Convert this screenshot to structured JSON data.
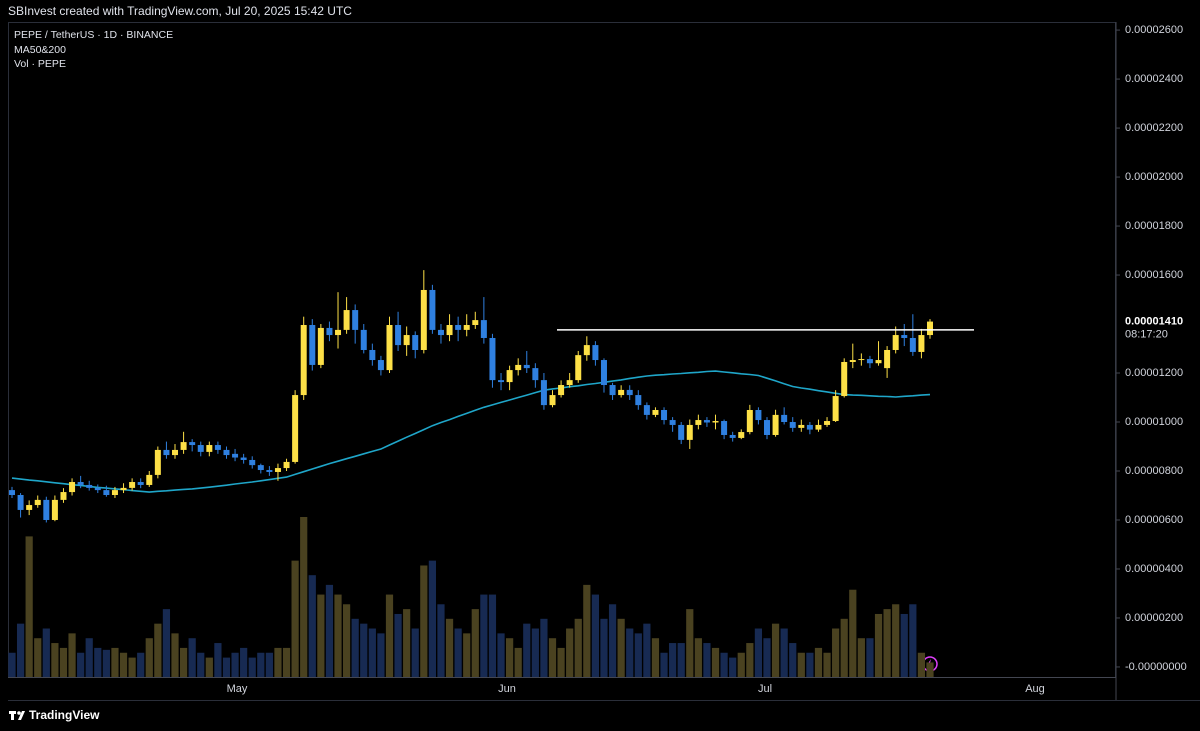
{
  "header": {
    "credit": "SBInvest created with TradingView.com, Jul 20, 2025 15:42 UTC"
  },
  "footer": {
    "brand": "TradingView"
  },
  "chart_data": {
    "type": "candlestick",
    "legend": [
      "PEPE / TetherUS · 1D · BINANCE",
      "MA50&200",
      "Vol · PEPE"
    ],
    "x_labels": [
      "May",
      "Jun",
      "Jul",
      "Aug"
    ],
    "up_color": "#fde047",
    "down_color": "#2f80e0",
    "vol_up_color": "#4a4220",
    "vol_down_color": "#172a52",
    "ma_color": "#1fa6c9",
    "hline_color": "#ffffff",
    "grid": false,
    "ylim": [
      -4.1e-07,
      2.633e-05
    ],
    "yticks": [
      {
        "value": 2.6e-05,
        "label": "0.00002600"
      },
      {
        "value": 2.4e-05,
        "label": "0.00002400"
      },
      {
        "value": 2.2e-05,
        "label": "0.00002200"
      },
      {
        "value": 2e-05,
        "label": "0.00002000"
      },
      {
        "value": 1.8e-05,
        "label": "0.00001800"
      },
      {
        "value": 1.6e-05,
        "label": "0.00001600"
      },
      {
        "value": 1.2e-05,
        "label": "0.00001200"
      },
      {
        "value": 1e-05,
        "label": "0.00001000"
      },
      {
        "value": 8e-06,
        "label": "0.00000800"
      },
      {
        "value": 6e-06,
        "label": "0.00000600"
      },
      {
        "value": 4e-06,
        "label": "0.00000400"
      },
      {
        "value": 2e-06,
        "label": "0.00000200"
      },
      {
        "value": 0,
        "label": "-0.00000000"
      }
    ],
    "last_price": {
      "value": 1.41e-05,
      "label": "0.00001410"
    },
    "countdown": "08:17:20",
    "hline": 1.376e-05,
    "open": [
      7.22e-06,
      7.02e-06,
      6.41e-06,
      6.61e-06,
      6.82e-06,
      6e-06,
      6.82e-06,
      7.14e-06,
      7.55e-06,
      7.43e-06,
      7.31e-06,
      7.22e-06,
      7.02e-06,
      7.22e-06,
      7.31e-06,
      7.55e-06,
      7.43e-06,
      7.84e-06,
      8.86e-06,
      8.65e-06,
      8.86e-06,
      9.18e-06,
      9.06e-06,
      8.78e-06,
      9.06e-06,
      8.86e-06,
      8.7e-06,
      8.55e-06,
      8.45e-06,
      8.24e-06,
      8.04e-06,
      7.96e-06,
      8.12e-06,
      8.37e-06,
      1.11e-05,
      1.396e-05,
      1.233e-05,
      1.384e-05,
      1.355e-05,
      1.376e-05,
      1.457e-05,
      1.376e-05,
      1.294e-05,
      1.253e-05,
      1.212e-05,
      1.396e-05,
      1.314e-05,
      1.355e-05,
      1.294e-05,
      1.539e-05,
      1.376e-05,
      1.355e-05,
      1.396e-05,
      1.376e-05,
      1.396e-05,
      1.416e-05,
      1.343e-05,
      1.171e-05,
      1.163e-05,
      1.212e-05,
      1.233e-05,
      1.22e-05,
      1.171e-05,
      1.069e-05,
      1.11e-05,
      1.151e-05,
      1.171e-05,
      1.273e-05,
      1.314e-05,
      1.253e-05,
      1.151e-05,
      1.11e-05,
      1.131e-05,
      1.11e-05,
      1.069e-05,
      1.029e-05,
      1.049e-05,
      1.008e-05,
      9.88e-06,
      9.27e-06,
      9.88e-06,
      1.008e-05,
      9.98e-06,
      1.004e-05,
      9.47e-06,
      9.35e-06,
      9.59e-06,
      1.049e-05,
      1.008e-05,
      9.47e-06,
      1.029e-05,
      1e-05,
      9.76e-06,
      9.88e-06,
      9.69e-06,
      9.88e-06,
      1.004e-05,
      1.106e-05,
      1.245e-05,
      1.253e-05,
      1.257e-05,
      1.24e-05,
      1.22e-05,
      1.294e-05,
      1.355e-05,
      1.343e-05,
      1.286e-05,
      1.355e-05
    ],
    "high": [
      7.35e-06,
      7.1e-06,
      6.8e-06,
      7e-06,
      6.95e-06,
      7e-06,
      7.3e-06,
      7.7e-06,
      7.8e-06,
      7.6e-06,
      7.45e-06,
      7.4e-06,
      7.35e-06,
      7.5e-06,
      7.7e-06,
      7.7e-06,
      8e-06,
      9e-06,
      9.2e-06,
      9.1e-06,
      9.6e-06,
      9.3e-06,
      9.2e-06,
      9.2e-06,
      9.2e-06,
      9e-06,
      8.9e-06,
      8.7e-06,
      8.6e-06,
      8.3e-06,
      8.2e-06,
      8.3e-06,
      8.5e-06,
      1.13e-05,
      1.43e-05,
      1.42e-05,
      1.4e-05,
      1.41e-05,
      1.53e-05,
      1.51e-05,
      1.48e-05,
      1.4e-05,
      1.32e-05,
      1.27e-05,
      1.43e-05,
      1.45e-05,
      1.39e-05,
      1.37e-05,
      1.62e-05,
      1.56e-05,
      1.4e-05,
      1.44e-05,
      1.43e-05,
      1.44e-05,
      1.45e-05,
      1.51e-05,
      1.36e-05,
      1.2e-05,
      1.23e-05,
      1.26e-05,
      1.29e-05,
      1.24e-05,
      1.2e-05,
      1.13e-05,
      1.17e-05,
      1.2e-05,
      1.29e-05,
      1.35e-05,
      1.33e-05,
      1.26e-05,
      1.16e-05,
      1.15e-05,
      1.15e-05,
      1.13e-05,
      1.08e-05,
      1.06e-05,
      1.06e-05,
      1.02e-05,
      1e-05,
      1.01e-05,
      1.03e-05,
      1.02e-05,
      1.03e-05,
      1.01e-05,
      9.6e-06,
      9.7e-06,
      1.07e-05,
      1.06e-05,
      1.02e-05,
      1.05e-05,
      1.06e-05,
      1.02e-05,
      1.01e-05,
      1e-05,
      1.01e-05,
      1.02e-05,
      1.13e-05,
      1.26e-05,
      1.32e-05,
      1.28e-05,
      1.27e-05,
      1.33e-05,
      1.31e-05,
      1.39e-05,
      1.4e-05,
      1.44e-05,
      1.38e-05,
      1.42e-05
    ],
    "low": [
      6.9e-06,
      6.1e-06,
      6.2e-06,
      6.5e-06,
      5.9e-06,
      5.95e-06,
      6.7e-06,
      7e-06,
      7.3e-06,
      7.2e-06,
      7.1e-06,
      6.95e-06,
      6.9e-06,
      7.1e-06,
      7.2e-06,
      7.3e-06,
      7.35e-06,
      7.7e-06,
      8.5e-06,
      8.5e-06,
      8.7e-06,
      8.8e-06,
      8.6e-06,
      8.6e-06,
      8.7e-06,
      8.5e-06,
      8.4e-06,
      8.3e-06,
      8.1e-06,
      7.9e-06,
      7.8e-06,
      7.6e-06,
      8e-06,
      8.3e-06,
      1.09e-05,
      1.21e-05,
      1.22e-05,
      1.33e-05,
      1.3e-05,
      1.36e-05,
      1.32e-05,
      1.28e-05,
      1.23e-05,
      1.19e-05,
      1.2e-05,
      1.29e-05,
      1.27e-05,
      1.26e-05,
      1.28e-05,
      1.36e-05,
      1.32e-05,
      1.33e-05,
      1.33e-05,
      1.35e-05,
      1.38e-05,
      1.32e-05,
      1.14e-05,
      1.13e-05,
      1.13e-05,
      1.19e-05,
      1.2e-05,
      1.14e-05,
      1.05e-05,
      1.06e-05,
      1.1e-05,
      1.14e-05,
      1.16e-05,
      1.25e-05,
      1.23e-05,
      1.12e-05,
      1.09e-05,
      1.1e-05,
      1.09e-05,
      1.05e-05,
      1.01e-05,
      1.02e-05,
      9.9e-06,
      9.6e-06,
      9.1e-06,
      8.9e-06,
      9.7e-06,
      9.8e-06,
      9.7e-06,
      9.3e-06,
      9.2e-06,
      9.3e-06,
      9.5e-06,
      9.9e-06,
      9.3e-06,
      9.4e-06,
      9.9e-06,
      9.6e-06,
      9.6e-06,
      9.5e-06,
      9.6e-06,
      9.8e-06,
      1e-05,
      1.1e-05,
      1.22e-05,
      1.23e-05,
      1.22e-05,
      1.23e-05,
      1.18e-05,
      1.28e-05,
      1.31e-05,
      1.27e-05,
      1.26e-05,
      1.34e-05
    ],
    "close": [
      7.02e-06,
      6.41e-06,
      6.61e-06,
      6.82e-06,
      6e-06,
      6.82e-06,
      7.14e-06,
      7.55e-06,
      7.43e-06,
      7.31e-06,
      7.22e-06,
      7.02e-06,
      7.22e-06,
      7.31e-06,
      7.55e-06,
      7.43e-06,
      7.84e-06,
      8.86e-06,
      8.65e-06,
      8.86e-06,
      9.18e-06,
      9.06e-06,
      8.78e-06,
      9.06e-06,
      8.86e-06,
      8.65e-06,
      8.55e-06,
      8.45e-06,
      8.24e-06,
      8.04e-06,
      7.96e-06,
      8.12e-06,
      8.37e-06,
      1.11e-05,
      1.396e-05,
      1.233e-05,
      1.384e-05,
      1.355e-05,
      1.376e-05,
      1.457e-05,
      1.376e-05,
      1.294e-05,
      1.253e-05,
      1.212e-05,
      1.396e-05,
      1.314e-05,
      1.355e-05,
      1.294e-05,
      1.539e-05,
      1.376e-05,
      1.355e-05,
      1.396e-05,
      1.376e-05,
      1.396e-05,
      1.416e-05,
      1.343e-05,
      1.171e-05,
      1.163e-05,
      1.212e-05,
      1.233e-05,
      1.22e-05,
      1.171e-05,
      1.069e-05,
      1.11e-05,
      1.151e-05,
      1.171e-05,
      1.273e-05,
      1.314e-05,
      1.253e-05,
      1.151e-05,
      1.11e-05,
      1.131e-05,
      1.11e-05,
      1.069e-05,
      1.029e-05,
      1.049e-05,
      1.008e-05,
      9.88e-06,
      9.27e-06,
      9.88e-06,
      1.008e-05,
      9.98e-06,
      1.004e-05,
      9.47e-06,
      9.35e-06,
      9.59e-06,
      1.049e-05,
      1.008e-05,
      9.47e-06,
      1.029e-05,
      1e-05,
      9.76e-06,
      9.88e-06,
      9.69e-06,
      9.88e-06,
      1.004e-05,
      1.106e-05,
      1.245e-05,
      1.253e-05,
      1.257e-05,
      1.24e-05,
      1.253e-05,
      1.294e-05,
      1.355e-05,
      1.343e-05,
      1.286e-05,
      1.355e-05,
      1.41e-05
    ],
    "volume": [
      25,
      55,
      145,
      40,
      50,
      35,
      30,
      45,
      25,
      40,
      30,
      28,
      30,
      25,
      20,
      25,
      40,
      55,
      70,
      45,
      30,
      40,
      25,
      20,
      35,
      20,
      25,
      30,
      20,
      25,
      25,
      30,
      30,
      120,
      165,
      105,
      85,
      95,
      85,
      75,
      60,
      55,
      50,
      45,
      85,
      65,
      70,
      50,
      115,
      120,
      75,
      60,
      50,
      45,
      70,
      85,
      85,
      45,
      40,
      30,
      55,
      50,
      60,
      40,
      30,
      50,
      60,
      95,
      85,
      60,
      75,
      60,
      50,
      45,
      55,
      40,
      25,
      35,
      35,
      70,
      40,
      35,
      30,
      25,
      20,
      25,
      35,
      50,
      40,
      55,
      50,
      35,
      25,
      25,
      30,
      25,
      50,
      60,
      90,
      40,
      40,
      65,
      70,
      75,
      65,
      75,
      25,
      15
    ],
    "ma": [
      7.71e-06,
      7.67e-06,
      7.63e-06,
      7.6e-06,
      7.56e-06,
      7.52e-06,
      7.48e-06,
      7.44e-06,
      7.41e-06,
      7.37e-06,
      7.33e-06,
      7.3e-06,
      7.27e-06,
      7.24e-06,
      7.2e-06,
      7.17e-06,
      7.14e-06,
      7.17e-06,
      7.19e-06,
      7.22e-06,
      7.25e-06,
      7.27e-06,
      7.3e-06,
      7.34e-06,
      7.38e-06,
      7.42e-06,
      7.47e-06,
      7.51e-06,
      7.55e-06,
      7.6e-06,
      7.65e-06,
      7.7e-06,
      7.75e-06,
      7.86e-06,
      7.97e-06,
      8.08e-06,
      8.19e-06,
      8.3e-06,
      8.4e-06,
      8.5e-06,
      8.6e-06,
      8.7e-06,
      8.8e-06,
      8.9e-06,
      9.06e-06,
      9.22e-06,
      9.38e-06,
      9.53e-06,
      9.69e-06,
      9.85e-06,
      9.98e-06,
      1.01e-05,
      1.023e-05,
      1.035e-05,
      1.048e-05,
      1.06e-05,
      1.07e-05,
      1.08e-05,
      1.09e-05,
      1.1e-05,
      1.11e-05,
      1.12e-05,
      1.13e-05,
      1.135e-05,
      1.139e-05,
      1.144e-05,
      1.148e-05,
      1.153e-05,
      1.157e-05,
      1.162e-05,
      1.167e-05,
      1.172e-05,
      1.178e-05,
      1.183e-05,
      1.188e-05,
      1.191e-05,
      1.193e-05,
      1.196e-05,
      1.198e-05,
      1.201e-05,
      1.203e-05,
      1.206e-05,
      1.208e-05,
      1.204e-05,
      1.201e-05,
      1.197e-05,
      1.194e-05,
      1.19e-05,
      1.179e-05,
      1.168e-05,
      1.156e-05,
      1.145e-05,
      1.139e-05,
      1.134e-05,
      1.128e-05,
      1.123e-05,
      1.117e-05,
      1.112e-05,
      1.11e-05,
      1.109e-05,
      1.107e-05,
      1.105e-05,
      1.104e-05,
      1.102e-05,
      1.105e-05,
      1.107e-05,
      1.11e-05,
      1.112e-05
    ]
  }
}
